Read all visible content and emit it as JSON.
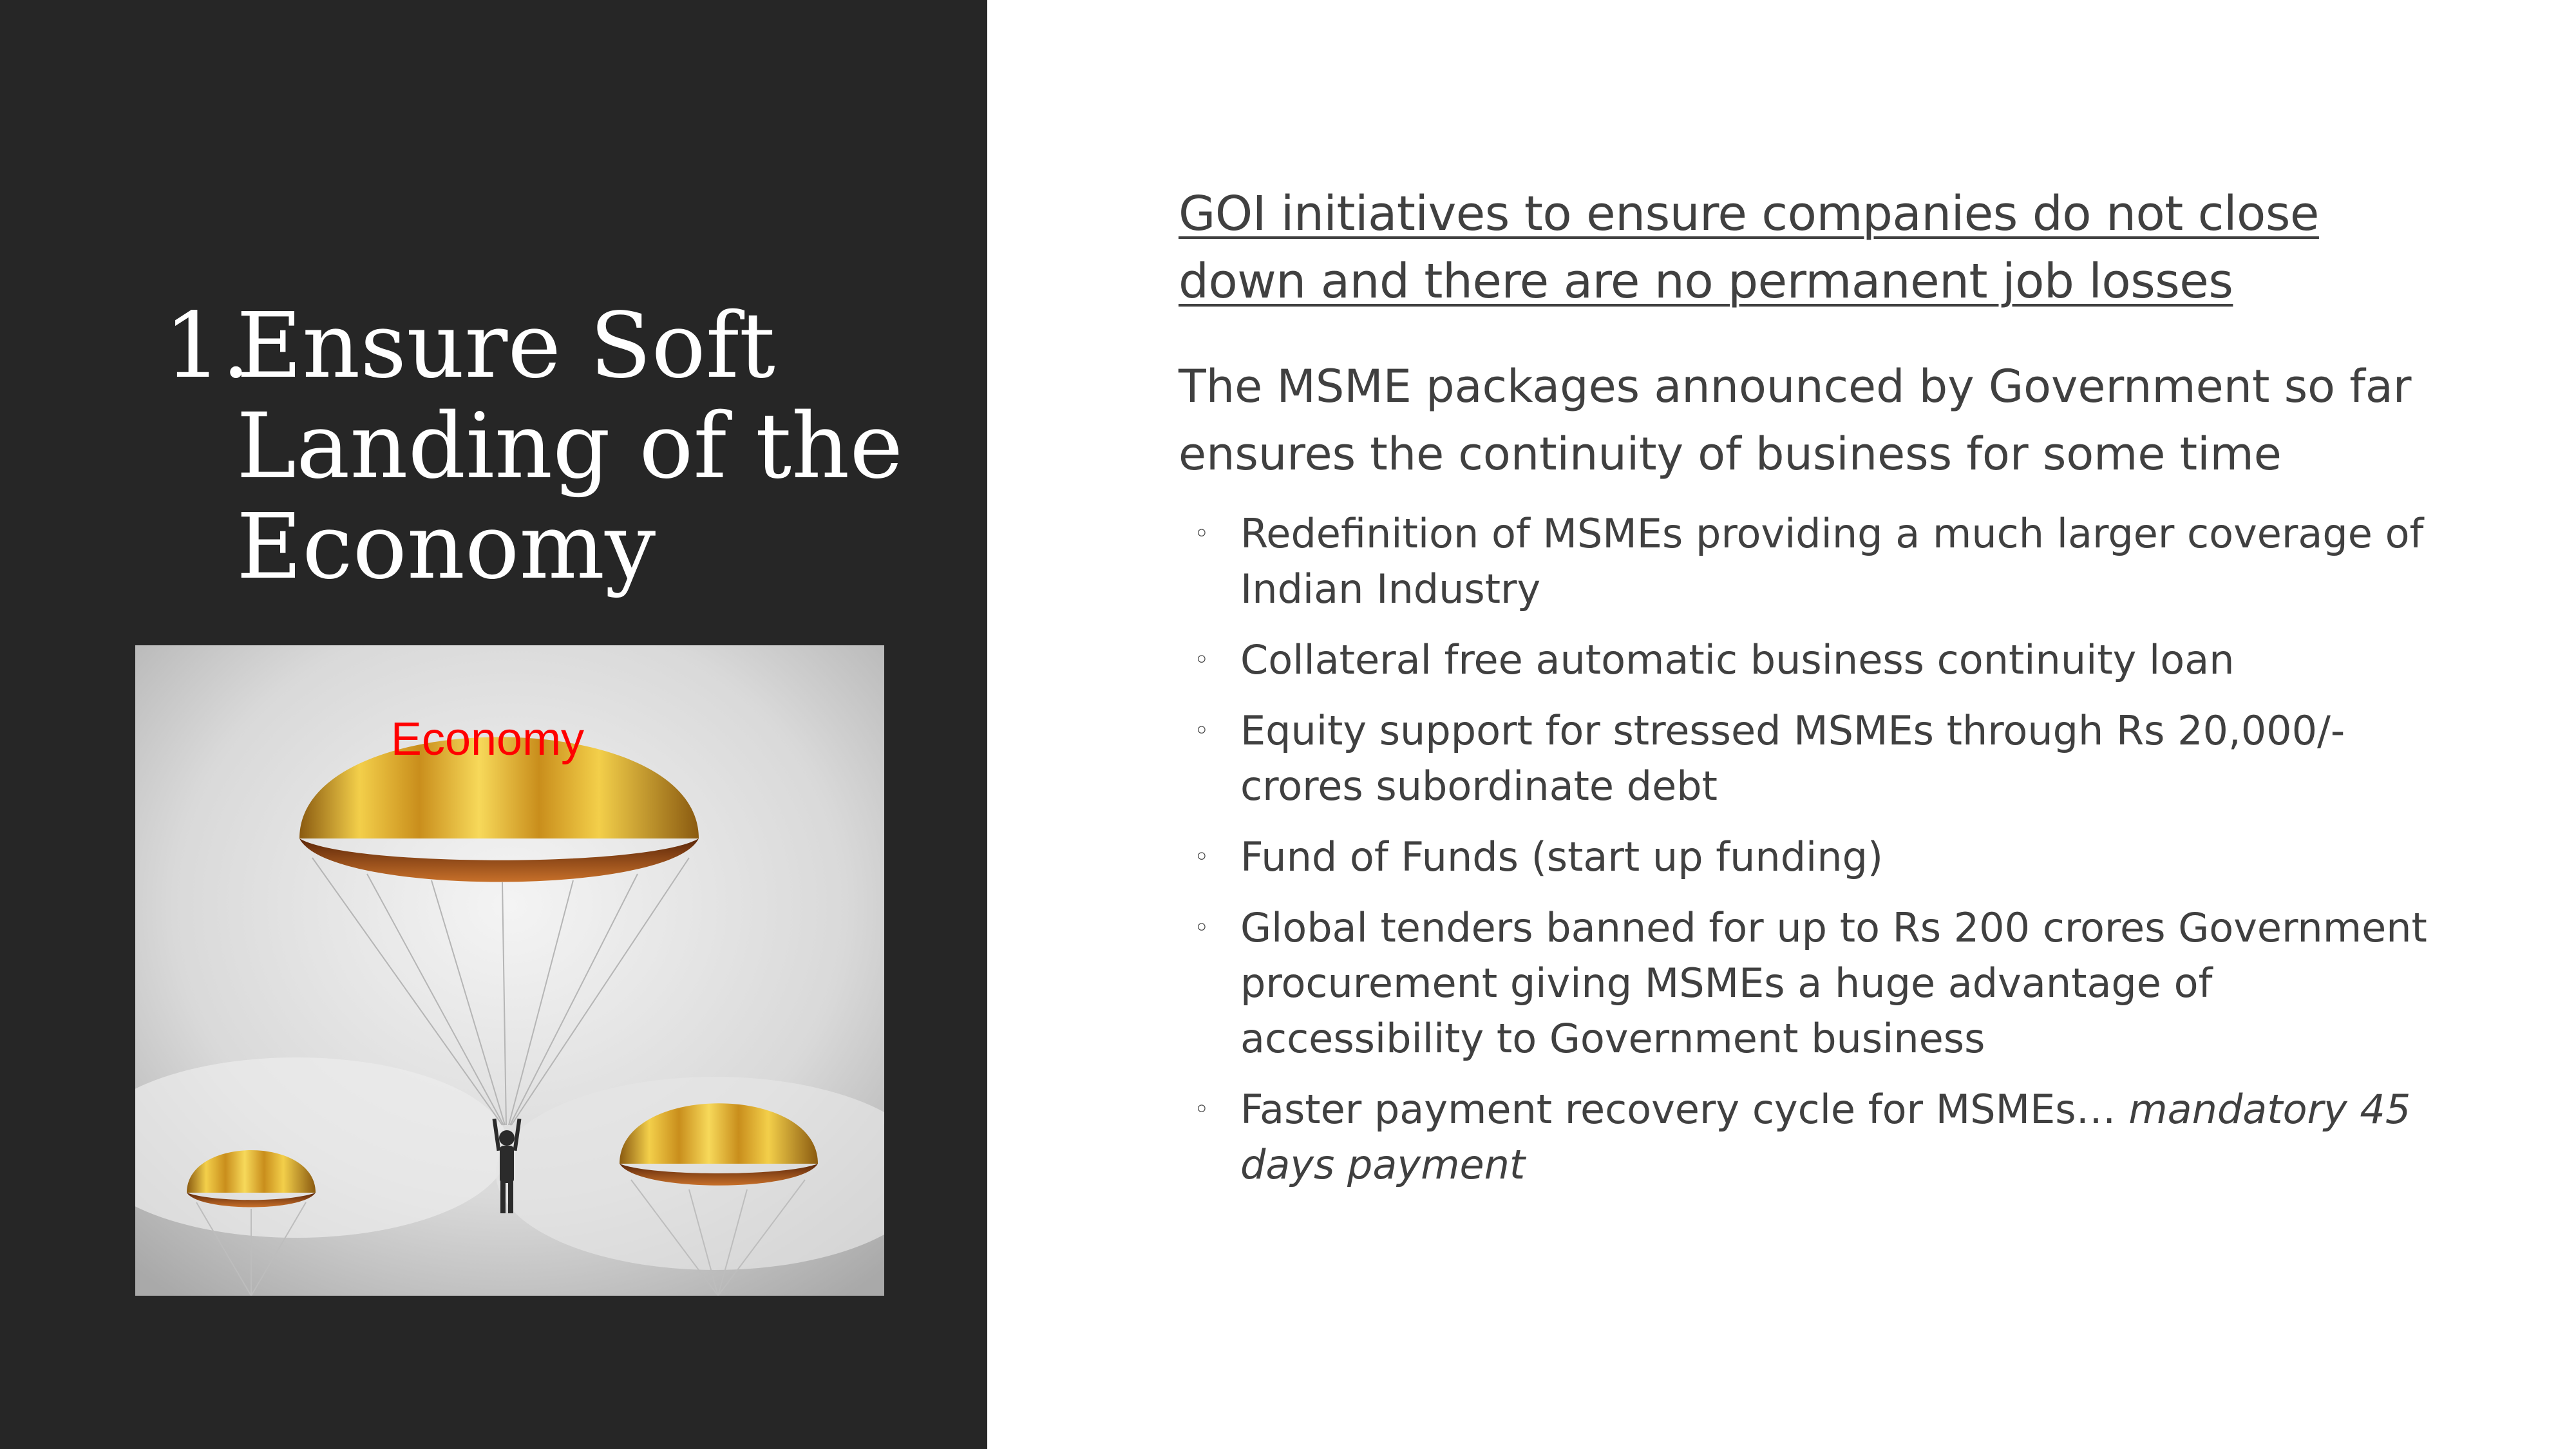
{
  "left": {
    "title_number": "1.",
    "title": "Ensure Soft Landing of the Economy",
    "image_caption": "Economy"
  },
  "right": {
    "heading": "GOI initiatives to ensure companies do not close down and there are no permanent job losses",
    "intro": "The MSME packages announced by Government so far ensures the continuity of business for some time",
    "bullets": [
      "Redefinition of MSMEs providing a much larger coverage of Indian Industry",
      "Collateral free automatic business continuity loan",
      "Equity support for stressed MSMEs through Rs 20,000/- crores subordinate debt",
      "Fund of Funds (start up funding)",
      "Global tenders banned for up to Rs 200 crores Government procurement giving MSMEs a huge advantage of accessibility to Government business",
      "Faster payment recovery cycle for MSMEs… "
    ],
    "last_bullet_emphasis": "mandatory 45 days payment",
    "bullet_marker": "◦"
  },
  "colors": {
    "left_panel": "#262626",
    "title": "#ffffff",
    "body_text": "#404040",
    "caption": "#ff0000",
    "parachute_gold": "#e8b92a",
    "parachute_inner": "#7a3a10"
  }
}
